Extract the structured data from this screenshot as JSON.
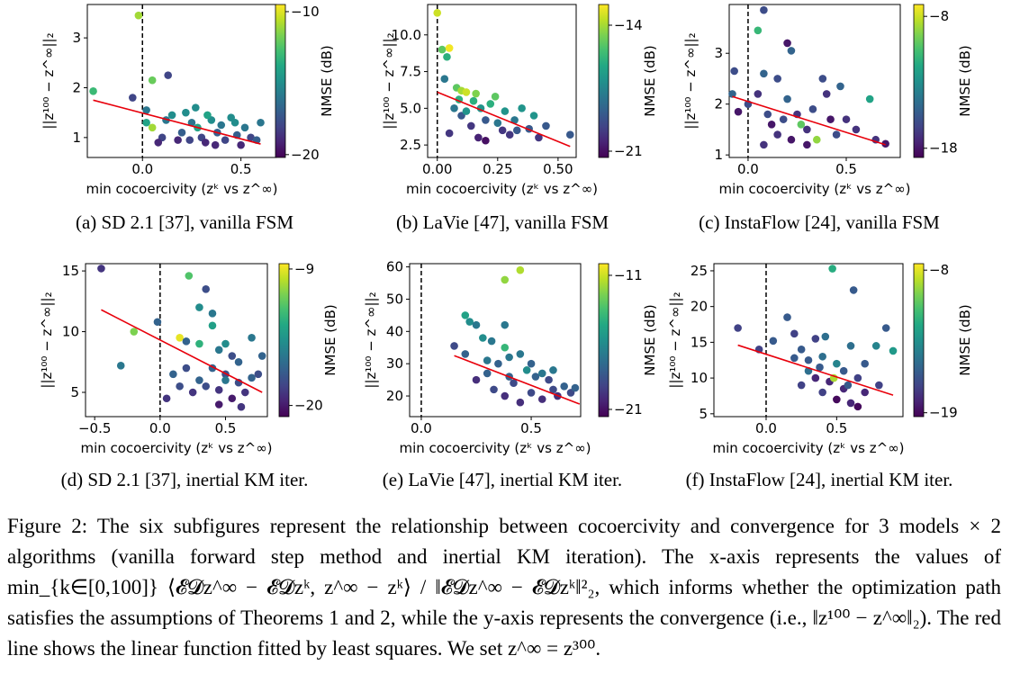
{
  "chart_data": [
    {
      "type": "scatter",
      "caption": "(a) SD 2.1 [37], vanilla FSM",
      "xlabel": "min cocoercivity (zᵏ vs z^∞)",
      "ylabel": "||z¹⁰⁰ − z^∞||₂",
      "colorbar_label": "NMSE (dB)",
      "colormap": "viridis",
      "xlim": [
        -0.28,
        0.68
      ],
      "ylim": [
        0.6,
        3.67
      ],
      "clim": [
        -20.2,
        -9.5
      ],
      "xticks": [
        {
          "value": 0,
          "label": "0.0"
        },
        {
          "value": 0.5,
          "label": "0.5"
        }
      ],
      "yticks": [
        1,
        2,
        3
      ],
      "cticks": [
        {
          "value": -10,
          "label": "−10"
        },
        {
          "value": -20,
          "label": "−20"
        }
      ],
      "vline": 0,
      "fit": {
        "color": "#e8000b",
        "x": [
          -0.25,
          0.6
        ],
        "y": [
          1.75,
          0.87
        ]
      },
      "x": [
        -0.02,
        -0.25,
        -0.05,
        0.05,
        0.02,
        0.02,
        0.05,
        0.1,
        0.12,
        0.15,
        0.2,
        0.22,
        0.25,
        0.28,
        0.3,
        0.32,
        0.35,
        0.38,
        0.4,
        0.42,
        0.45,
        0.48,
        0.5,
        0.52,
        0.55,
        0.58,
        0.6,
        0.13,
        0.18,
        0.27,
        0.08,
        0.33,
        0.47,
        0.37,
        0.24
      ],
      "y": [
        3.45,
        1.93,
        1.8,
        2.15,
        1.55,
        1.3,
        1.2,
        1.0,
        1.35,
        1.45,
        1.1,
        1.5,
        1.3,
        1.2,
        1.0,
        0.9,
        1.35,
        1.1,
        1.25,
        0.95,
        1.4,
        1.05,
        0.85,
        1.2,
        1.0,
        0.95,
        1.3,
        2.25,
        0.95,
        1.6,
        0.9,
        1.45,
        1.3,
        0.85,
        0.95
      ],
      "color_values": [
        -11,
        -13,
        -18,
        -12,
        -16,
        -14,
        -11,
        -18,
        -16,
        -15,
        -17,
        -15,
        -16,
        -14,
        -18,
        -19,
        -15,
        -17,
        -16,
        -18,
        -15,
        -17,
        -19,
        -16,
        -18,
        -17,
        -16,
        -18,
        -19,
        -15,
        -19,
        -14,
        -15,
        -19,
        -18
      ]
    },
    {
      "type": "scatter",
      "caption": "(b) LaVie [47], vanilla FSM",
      "xlabel": "min cocoercivity (zᵏ vs z^∞)",
      "ylabel": "||z¹⁰⁰ − z^∞||₂",
      "colorbar_label": "NMSE (dB)",
      "colormap": "viridis",
      "xlim": [
        -0.04,
        0.575
      ],
      "ylim": [
        1.65,
        12.07
      ],
      "clim": [
        -21.35,
        -12.85
      ],
      "xticks": [
        {
          "value": 0,
          "label": "0.00"
        },
        {
          "value": 0.25,
          "label": "0.25"
        },
        {
          "value": 0.5,
          "label": "0.50"
        }
      ],
      "yticks": [
        {
          "value": 2.5,
          "label": "2.5"
        },
        {
          "value": 5,
          "label": "5.0"
        },
        {
          "value": 7.5,
          "label": "7.5"
        },
        {
          "value": 10,
          "label": "10.0"
        }
      ],
      "cticks": [
        {
          "value": -14,
          "label": "−14"
        },
        {
          "value": -21,
          "label": "−21"
        }
      ],
      "vline": 0,
      "fit": {
        "color": "#e8000b",
        "x": [
          0.0,
          0.55
        ],
        "y": [
          6.1,
          2.4
        ]
      },
      "x": [
        0.0,
        0.02,
        0.05,
        0.04,
        0.03,
        0.08,
        0.1,
        0.12,
        0.15,
        0.07,
        0.1,
        0.14,
        0.18,
        0.2,
        0.22,
        0.25,
        0.27,
        0.28,
        0.3,
        0.32,
        0.35,
        0.38,
        0.4,
        0.42,
        0.45,
        0.05,
        0.17,
        0.2,
        0.12,
        0.55,
        0.24,
        0.33,
        0.16,
        0.09
      ],
      "y": [
        11.5,
        9.0,
        9.1,
        8.5,
        7.0,
        6.4,
        6.2,
        6.1,
        5.5,
        5.0,
        4.5,
        3.8,
        5.0,
        4.2,
        5.3,
        4.0,
        3.5,
        4.8,
        3.2,
        4.2,
        5.0,
        3.6,
        4.5,
        3.0,
        3.8,
        3.3,
        3.0,
        2.8,
        4.8,
        3.2,
        5.8,
        3.5,
        6.0,
        5.6
      ],
      "color_values": [
        -13.5,
        -15,
        -13,
        -16,
        -18,
        -15,
        -14,
        -13.5,
        -16,
        -18,
        -19,
        -20,
        -17,
        -19,
        -16,
        -18,
        -20,
        -17,
        -20,
        -18,
        -17,
        -19,
        -17,
        -20,
        -19,
        -20,
        -20.5,
        -21,
        -17,
        -19,
        -15,
        -19,
        -14.5,
        -16
      ]
    },
    {
      "type": "scatter",
      "caption": "(c) InstaFlow [24], vanilla FSM",
      "xlabel": "min cocoercivity (zᵏ vs z^∞)",
      "ylabel": "||z¹⁰⁰ − z^∞||₂",
      "colorbar_label": "NMSE (dB)",
      "colormap": "viridis",
      "xlim": [
        -0.096,
        0.775
      ],
      "ylim": [
        0.95,
        3.96
      ],
      "clim": [
        -18.7,
        -7.1
      ],
      "xticks": [
        {
          "value": 0,
          "label": "0.0"
        },
        {
          "value": 0.5,
          "label": "0.5"
        }
      ],
      "yticks": [
        1,
        2,
        3
      ],
      "cticks": [
        {
          "value": -8,
          "label": "−8"
        },
        {
          "value": -18,
          "label": "−18"
        }
      ],
      "vline": 0,
      "fit": {
        "color": "#e8000b",
        "x": [
          -0.08,
          0.7
        ],
        "y": [
          2.15,
          1.2
        ]
      },
      "x": [
        0.08,
        0.05,
        0.2,
        0.22,
        -0.07,
        -0.08,
        0.0,
        0.05,
        0.08,
        0.1,
        0.12,
        0.15,
        0.18,
        0.2,
        0.22,
        0.25,
        0.27,
        0.3,
        0.33,
        0.35,
        0.38,
        0.4,
        0.42,
        0.45,
        0.5,
        0.55,
        0.62,
        0.65,
        0.7,
        0.15,
        -0.05,
        0.3,
        0.08,
        0.47
      ],
      "y": [
        3.85,
        3.45,
        3.2,
        3.05,
        2.65,
        2.2,
        2.0,
        2.2,
        2.6,
        1.8,
        1.6,
        1.4,
        1.7,
        2.1,
        1.3,
        1.8,
        1.6,
        1.5,
        1.9,
        1.3,
        2.5,
        2.2,
        1.7,
        1.4,
        1.7,
        1.5,
        2.1,
        1.3,
        1.22,
        2.5,
        1.85,
        1.2,
        1.2,
        2.35
      ],
      "color_values": [
        -16,
        -11,
        -18,
        -15,
        -16,
        -15,
        -16,
        -17,
        -15,
        -16,
        -18,
        -17,
        -16,
        -15,
        -18,
        -17,
        -10,
        -17,
        -16,
        -9,
        -16,
        -17,
        -18,
        -16,
        -17,
        -17,
        -12,
        -17,
        -18,
        -16,
        -18,
        -18,
        -17,
        -15
      ]
    },
    {
      "type": "scatter",
      "caption": "(d) SD 2.1 [37], inertial KM iter.",
      "xlabel": "min cocoercivity (zᵏ vs z^∞)",
      "ylabel": "||z¹⁰⁰ − z^∞||₂",
      "colorbar_label": "NMSE (dB)",
      "colormap": "viridis",
      "xlim": [
        -0.57,
        0.82
      ],
      "ylim": [
        3.0,
        15.6
      ],
      "clim": [
        -20.9,
        -8.57
      ],
      "xticks": [
        {
          "value": -0.5,
          "label": "−0.5"
        },
        {
          "value": 0,
          "label": "0.0"
        },
        {
          "value": 0.5,
          "label": "0.5"
        }
      ],
      "yticks": [
        5,
        10,
        15
      ],
      "cticks": [
        {
          "value": -9,
          "label": "−9"
        },
        {
          "value": -20,
          "label": "−20"
        }
      ],
      "vline": 0,
      "fit": {
        "color": "#e8000b",
        "x": [
          -0.45,
          0.78
        ],
        "y": [
          11.8,
          5.0
        ]
      },
      "x": [
        -0.45,
        -0.2,
        -0.3,
        -0.02,
        0.22,
        0.35,
        0.3,
        0.4,
        0.15,
        0.2,
        0.3,
        0.45,
        0.5,
        0.55,
        0.6,
        0.7,
        0.78,
        0.1,
        0.2,
        0.25,
        0.3,
        0.35,
        0.4,
        0.45,
        0.5,
        0.55,
        0.6,
        0.65,
        0.7,
        0.05,
        0.15,
        0.45,
        0.62,
        0.4,
        0.5,
        0.75
      ],
      "y": [
        15.2,
        10.0,
        7.2,
        10.8,
        14.6,
        13.5,
        12.0,
        11.5,
        9.5,
        9.2,
        9.0,
        8.5,
        9.0,
        8.0,
        7.5,
        9.5,
        8.0,
        6.5,
        7.0,
        5.0,
        6.0,
        5.5,
        7.0,
        5.2,
        6.5,
        4.5,
        5.8,
        5.0,
        6.2,
        4.5,
        5.5,
        4.0,
        3.8,
        10.5,
        6.0,
        6.5
      ],
      "color_values": [
        -19,
        -11,
        -16,
        -17,
        -12,
        -18,
        -15,
        -16,
        -9,
        -17,
        -13,
        -16,
        -15,
        -18,
        -17,
        -16,
        -17,
        -17,
        -18,
        -19,
        -17,
        -18,
        -17,
        -19,
        -18,
        -20,
        -18,
        -19,
        -17,
        -19,
        -18,
        -20,
        -19,
        -14,
        -16,
        -18
      ]
    },
    {
      "type": "scatter",
      "caption": "(e) LaVie [47], inertial KM iter.",
      "xlabel": "min cocoercivity (zᵏ vs z^∞)",
      "ylabel": "||z¹⁰⁰ − z^∞||₂",
      "colorbar_label": "NMSE (dB)",
      "colormap": "viridis",
      "xlim": [
        -0.053,
        0.725
      ],
      "ylim": [
        13.6,
        61.0
      ],
      "clim": [
        -21.54,
        -10.13
      ],
      "xticks": [
        {
          "value": 0,
          "label": "0.0"
        },
        {
          "value": 0.5,
          "label": "0.5"
        }
      ],
      "yticks": [
        20,
        30,
        40,
        50,
        60
      ],
      "cticks": [
        {
          "value": -11,
          "label": "−11"
        },
        {
          "value": -21,
          "label": "−21"
        }
      ],
      "vline": 0,
      "fit": {
        "color": "#e8000b",
        "x": [
          0.15,
          0.72
        ],
        "y": [
          32.5,
          17.5
        ]
      },
      "x": [
        0.45,
        0.38,
        0.2,
        0.22,
        0.25,
        0.38,
        0.28,
        0.32,
        0.38,
        0.15,
        0.35,
        0.4,
        0.45,
        0.48,
        0.5,
        0.52,
        0.55,
        0.58,
        0.6,
        0.62,
        0.65,
        0.68,
        0.7,
        0.25,
        0.3,
        0.33,
        0.38,
        0.42,
        0.45,
        0.5,
        0.55,
        0.3,
        0.2,
        0.6,
        0.4
      ],
      "y": [
        59,
        56,
        45,
        43,
        42,
        42,
        38,
        37,
        35,
        35.5,
        30,
        32,
        33,
        28,
        30,
        26,
        27,
        25,
        22,
        20,
        23,
        21,
        22.5,
        25,
        27,
        22,
        20,
        24,
        18,
        21,
        19,
        31,
        33,
        28,
        26
      ],
      "color_values": [
        -11.5,
        -12,
        -15,
        -16,
        -17,
        -17,
        -16,
        -17,
        -14,
        -19,
        -18,
        -17,
        -17,
        -16,
        -18,
        -18,
        -17,
        -19,
        -19,
        -20,
        -18,
        -19,
        -18,
        -20,
        -18,
        -19,
        -20,
        -19,
        -20,
        -19,
        -20,
        -17,
        -18,
        -17,
        -18
      ]
    },
    {
      "type": "scatter",
      "caption": "(f) InstaFlow [24], inertial KM iter.",
      "xlabel": "min cocoercivity (zᵏ vs z^∞)",
      "ylabel": "||z¹⁰⁰ − z^∞||₂",
      "colorbar_label": "NMSE (dB)",
      "colormap": "viridis",
      "xlim": [
        -0.37,
        0.97
      ],
      "ylim": [
        4.6,
        26.0
      ],
      "clim": [
        -19.3,
        -7.5
      ],
      "xticks": [
        {
          "value": 0,
          "label": "0.0"
        },
        {
          "value": 0.5,
          "label": "0.5"
        }
      ],
      "yticks": [
        5,
        10,
        15,
        20,
        25
      ],
      "cticks": [
        {
          "value": -8,
          "label": "−8"
        },
        {
          "value": -19,
          "label": "−19"
        }
      ],
      "vline": 0,
      "fit": {
        "color": "#e8000b",
        "x": [
          -0.2,
          0.9
        ],
        "y": [
          14.6,
          7.6
        ]
      },
      "x": [
        -0.2,
        0.47,
        0.62,
        0.15,
        0.05,
        -0.05,
        0.2,
        0.25,
        0.3,
        0.35,
        0.4,
        0.42,
        0.5,
        0.55,
        0.6,
        0.65,
        0.7,
        0.78,
        0.85,
        0.9,
        0.8,
        0.35,
        0.4,
        0.45,
        0.5,
        0.55,
        0.6,
        0.3,
        0.48,
        0.58,
        0.25,
        0.7,
        0.2,
        0.38,
        0.65
      ],
      "y": [
        17,
        25.3,
        22.3,
        18.5,
        15.2,
        14,
        16.2,
        14,
        12.5,
        15.5,
        13,
        15.8,
        12,
        11,
        14.5,
        10,
        12,
        14.5,
        17,
        13.8,
        9,
        10,
        8,
        9.5,
        7,
        8.5,
        6.5,
        11,
        10,
        9,
        9,
        8,
        12.8,
        11.5,
        6
      ],
      "color_values": [
        -17,
        -12,
        -16,
        -16,
        -16,
        -17,
        -17,
        -16,
        -16,
        -17,
        -15,
        -15,
        -14,
        -16,
        -15,
        -17,
        -16,
        -14,
        -16,
        -13,
        -17,
        -18,
        -17,
        -18,
        -19,
        -18,
        -18,
        -15,
        -9,
        -16,
        -17,
        -18,
        -16,
        -16,
        -19
      ]
    }
  ],
  "caption": "Figure 2: The six subfigures represent the relationship between cocoercivity and convergence for 3 models × 2 algorithms (vanilla forward step method and inertial KM iteration). The x-axis represents the values of min_{k∈[0,100]} ⟨𝓔𝓓z^∞ − 𝓔𝓓zᵏ, z^∞ − zᵏ⟩ / ‖𝓔𝓓z^∞ − 𝓔𝓓zᵏ‖²₂, which informs whether the optimization path satisfies the assumptions of Theorems 1 and 2, while the y-axis represents the convergence (i.e., ‖z¹⁰⁰ − z^∞‖₂). The red line shows the linear function fitted by least squares. We set z^∞ = z³⁰⁰."
}
